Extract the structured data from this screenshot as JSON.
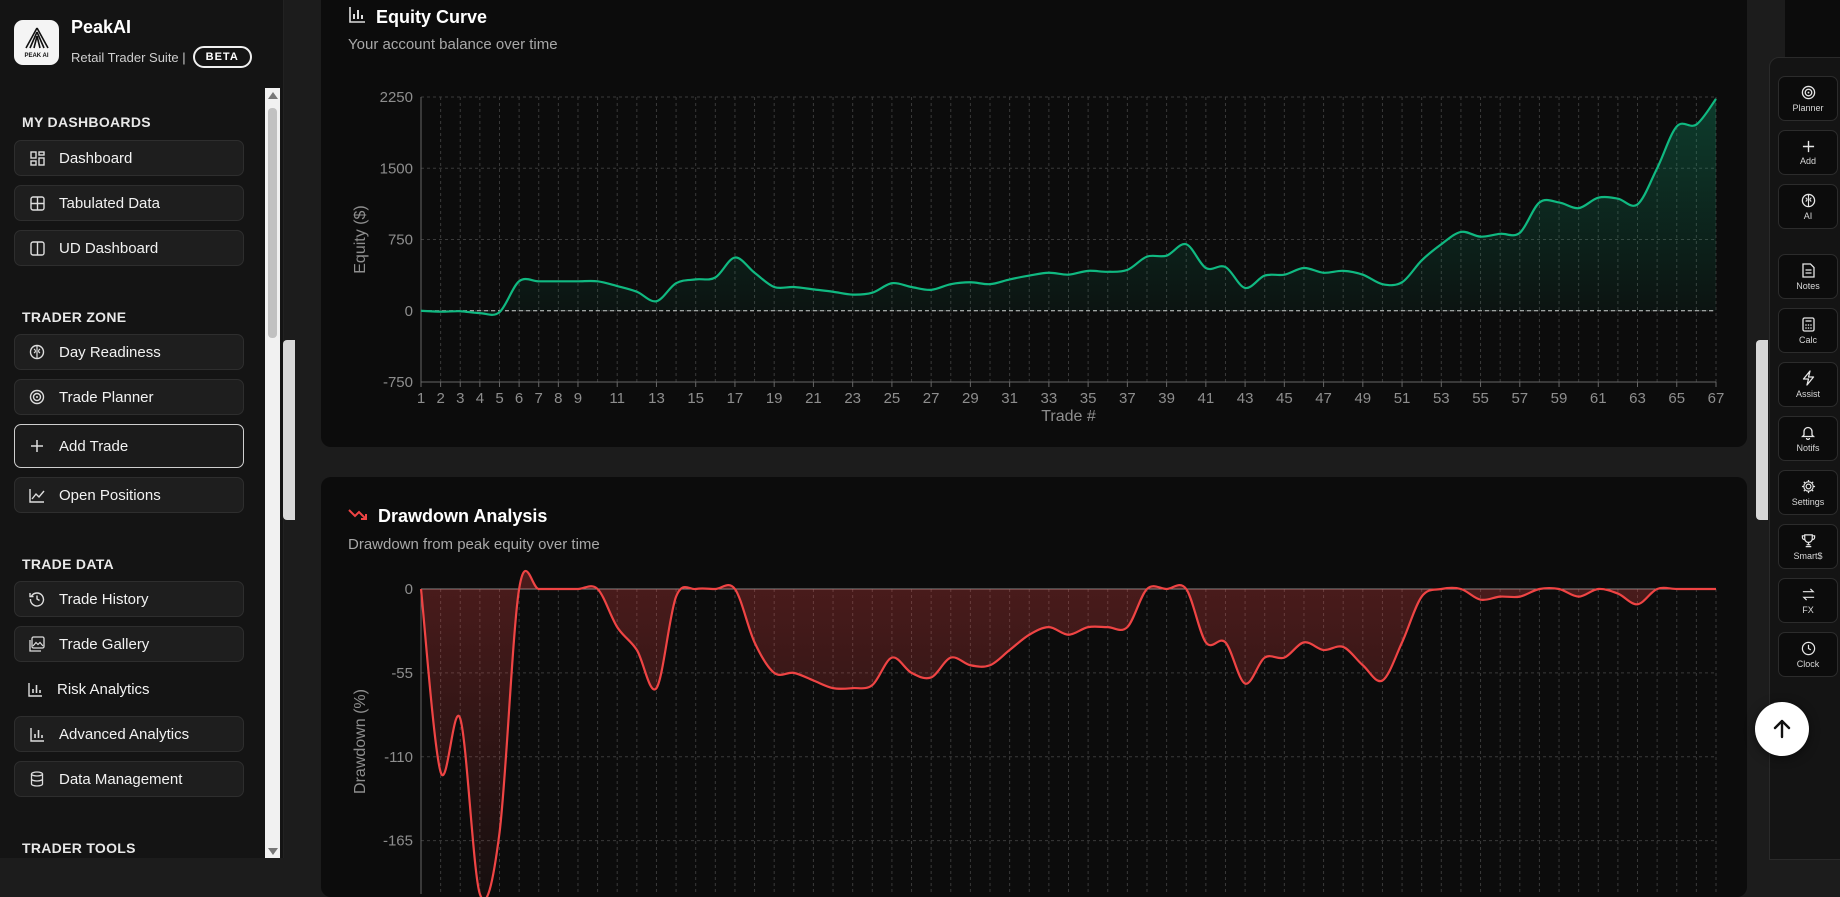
{
  "brand": {
    "name": "PeakAI",
    "subtitle": "Retail Trader Suite |",
    "badge": "BETA",
    "logo_text": "PEAK AI"
  },
  "sidebar": {
    "sections": [
      {
        "title": "MY DASHBOARDS",
        "items": [
          {
            "label": "Dashboard",
            "icon": "dashboard-grid-icon"
          },
          {
            "label": "Tabulated Data",
            "icon": "table-icon"
          },
          {
            "label": "UD Dashboard",
            "icon": "columns-icon"
          }
        ]
      },
      {
        "title": "TRADER ZONE",
        "items": [
          {
            "label": "Day Readiness",
            "icon": "brain-icon"
          },
          {
            "label": "Trade Planner",
            "icon": "target-icon"
          },
          {
            "label": "Add Trade",
            "icon": "plus-icon",
            "active": true
          },
          {
            "label": "Open Positions",
            "icon": "line-chart-icon"
          }
        ]
      },
      {
        "title": "TRADE DATA",
        "items": [
          {
            "label": "Trade History",
            "icon": "history-icon"
          },
          {
            "label": "Trade Gallery",
            "icon": "gallery-icon"
          },
          {
            "label": "Risk Analytics",
            "icon": "bar-chart-icon"
          },
          {
            "label": "Advanced Analytics",
            "icon": "bar-chart-icon"
          },
          {
            "label": "Data Management",
            "icon": "database-icon"
          }
        ]
      },
      {
        "title": "TRADER TOOLS",
        "items": []
      }
    ]
  },
  "equity_card": {
    "title": "Equity Curve",
    "subtitle": "Your account balance over time",
    "icon": "bar-chart-icon"
  },
  "drawdown_card": {
    "title": "Drawdown Analysis",
    "subtitle": "Drawdown from peak equity over time",
    "icon": "trending-down-icon"
  },
  "rail": [
    {
      "label": "Planner",
      "icon": "target-icon"
    },
    {
      "label": "Add",
      "icon": "plus-icon"
    },
    {
      "label": "AI",
      "icon": "brain-icon"
    },
    {
      "label": "Notes",
      "icon": "notes-icon"
    },
    {
      "label": "Calc",
      "icon": "calculator-icon"
    },
    {
      "label": "Assist",
      "icon": "lightning-icon"
    },
    {
      "label": "Notifs",
      "icon": "bell-icon"
    },
    {
      "label": "Settings",
      "icon": "gear-icon"
    },
    {
      "label": "Smart$",
      "icon": "trophy-icon"
    },
    {
      "label": "FX",
      "icon": "swap-icon"
    },
    {
      "label": "Clock",
      "icon": "clock-icon"
    }
  ],
  "colors": {
    "equity_line": "#10b981",
    "drawdown_line": "#ef4444",
    "card_bg": "#0c0c0c"
  },
  "chart_data": [
    {
      "type": "area",
      "title": "",
      "xlabel": "Trade #",
      "ylabel": "Equity ($)",
      "xlim": [
        1,
        67
      ],
      "ylim": [
        -750,
        2250
      ],
      "yticks": [
        -750,
        0,
        750,
        1500,
        2250
      ],
      "xticks": [
        1,
        2,
        3,
        4,
        5,
        6,
        7,
        8,
        9,
        11,
        13,
        15,
        17,
        19,
        21,
        23,
        25,
        27,
        29,
        31,
        33,
        35,
        37,
        39,
        41,
        43,
        45,
        47,
        49,
        51,
        53,
        55,
        57,
        59,
        61,
        63,
        65,
        67
      ],
      "grid": true,
      "series": [
        {
          "x": [
            1,
            2,
            3,
            4,
            5,
            6,
            7,
            8,
            9,
            10,
            11,
            12,
            13,
            14,
            15,
            16,
            17,
            18,
            19,
            20,
            21,
            22,
            23,
            24,
            25,
            26,
            27,
            28,
            29,
            30,
            31,
            32,
            33,
            34,
            35,
            36,
            37,
            38,
            39,
            40,
            41,
            42,
            43,
            44,
            45,
            46,
            47,
            48,
            49,
            50,
            51,
            52,
            53,
            54,
            55,
            56,
            57,
            58,
            59,
            60,
            61,
            62,
            63,
            64,
            65,
            66,
            67
          ],
          "values": [
            0,
            -10,
            -5,
            -25,
            -15,
            310,
            310,
            310,
            310,
            310,
            260,
            200,
            100,
            290,
            330,
            350,
            560,
            400,
            250,
            250,
            225,
            200,
            170,
            190,
            290,
            250,
            220,
            280,
            300,
            280,
            330,
            370,
            400,
            380,
            420,
            410,
            430,
            570,
            580,
            700,
            450,
            460,
            240,
            370,
            380,
            450,
            400,
            420,
            380,
            280,
            300,
            530,
            700,
            830,
            780,
            810,
            820,
            1140,
            1140,
            1080,
            1190,
            1180,
            1120,
            1500,
            1940,
            1960,
            2230
          ]
        }
      ]
    },
    {
      "type": "area",
      "title": "",
      "xlabel": "",
      "ylabel": "Drawdown (%)",
      "ylim": [
        -200,
        0
      ],
      "yticks": [
        -165,
        -110,
        -55,
        0
      ],
      "grid": true,
      "series": [
        {
          "x": [
            1,
            2,
            3,
            4,
            5,
            6,
            7,
            8,
            9,
            10,
            11,
            12,
            13,
            14,
            15,
            16,
            17,
            18,
            19,
            20,
            21,
            22,
            23,
            24,
            25,
            26,
            27,
            28,
            29,
            30,
            31,
            32,
            33,
            34,
            35,
            36,
            37,
            38,
            39,
            40,
            41,
            42,
            43,
            44,
            45,
            46,
            47,
            48,
            49,
            50,
            51,
            52,
            53,
            54,
            55,
            56,
            57,
            58,
            59,
            60,
            61,
            62,
            63,
            64,
            65,
            66,
            67
          ],
          "values": [
            0,
            -120,
            -85,
            -200,
            -160,
            0,
            0,
            0,
            0,
            0,
            -25,
            -40,
            -65,
            -5,
            0,
            0,
            0,
            -35,
            -55,
            -55,
            -60,
            -65,
            -65,
            -63,
            -45,
            -55,
            -58,
            -45,
            -50,
            -50,
            -40,
            -30,
            -25,
            -30,
            -25,
            -25,
            -25,
            0,
            0,
            0,
            -35,
            -35,
            -62,
            -45,
            -45,
            -35,
            -40,
            -38,
            -50,
            -60,
            -35,
            -5,
            0,
            0,
            -7,
            -5,
            -5,
            0,
            0,
            -5,
            0,
            -3,
            -10,
            0,
            0,
            0,
            0
          ]
        }
      ]
    }
  ]
}
